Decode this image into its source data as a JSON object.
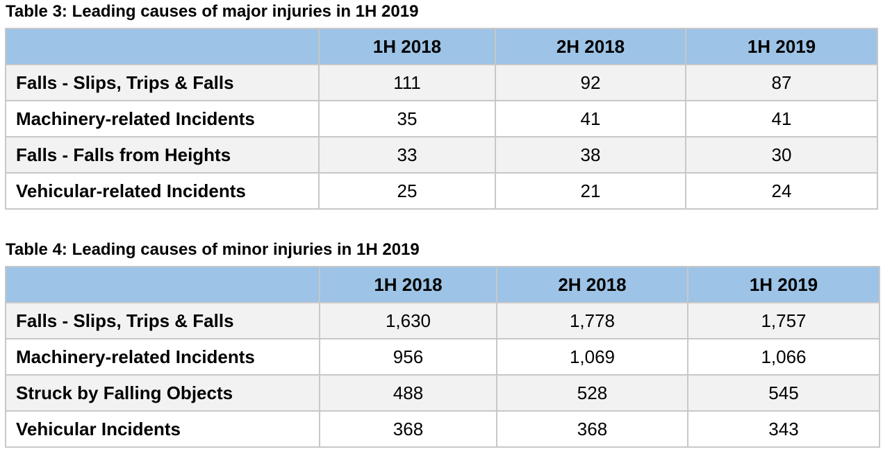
{
  "table3": {
    "caption": "Table 3: Leading causes of major injuries in 1H 2019",
    "columns": [
      "",
      "1H 2018",
      "2H 2018",
      "1H 2019"
    ],
    "rows": [
      {
        "label": "Falls - Slips, Trips & Falls",
        "values": [
          "111",
          "92",
          "87"
        ]
      },
      {
        "label": "Machinery-related Incidents",
        "values": [
          "35",
          "41",
          "41"
        ]
      },
      {
        "label": "Falls - Falls from Heights",
        "values": [
          "33",
          "38",
          "30"
        ]
      },
      {
        "label": "Vehicular-related Incidents",
        "values": [
          "25",
          "21",
          "24"
        ]
      }
    ]
  },
  "table4": {
    "caption": "Table 4: Leading causes of minor injuries in 1H 2019",
    "columns": [
      "",
      "1H 2018",
      "2H 2018",
      "1H 2019"
    ],
    "rows": [
      {
        "label": "Falls - Slips, Trips & Falls",
        "values": [
          "1,630",
          "1,778",
          "1,757"
        ]
      },
      {
        "label": "Machinery-related Incidents",
        "values": [
          "956",
          "1,069",
          "1,066"
        ]
      },
      {
        "label": "Struck by Falling Objects",
        "values": [
          "488",
          "528",
          "545"
        ]
      },
      {
        "label": "Vehicular Incidents",
        "values": [
          "368",
          "368",
          "343"
        ]
      }
    ]
  },
  "colors": {
    "header_fill": "#9dc3e6",
    "row_fill_odd": "#f2f2f2",
    "row_fill_even": "#ffffff",
    "grid_line": "#c8c8c8"
  }
}
